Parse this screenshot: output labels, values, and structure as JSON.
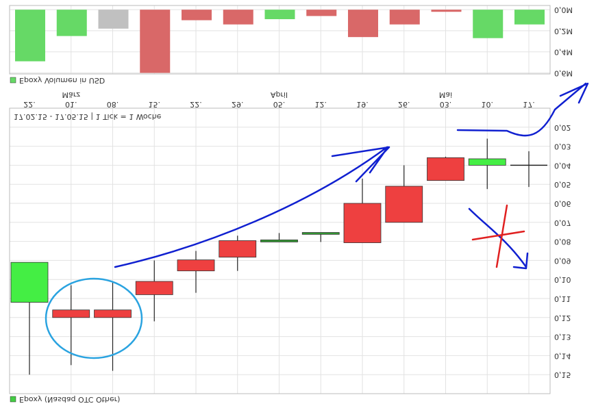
{
  "chart_data": [
    {
      "type": "candlestick",
      "flip_vertical": true,
      "legend": "Epoxy (Nasdaq OTC Other)",
      "period": "17.02.15 - 17.05.15 | 1 Tick = 1 Woche",
      "categories": [
        "22.",
        "01.",
        "08.",
        "15.",
        "22.",
        "29.",
        "05.",
        "12.",
        "19.",
        "26.",
        "03.",
        "10.",
        "17."
      ],
      "months": [
        null,
        "März",
        null,
        null,
        null,
        null,
        "April",
        null,
        null,
        null,
        "Mai",
        null,
        null
      ],
      "open": [
        0.091,
        0.12,
        0.12,
        0.108,
        0.0955,
        0.0883,
        0.0792,
        0.0753,
        0.0807,
        0.07,
        0.048,
        0.0366,
        0.04
      ],
      "high": [
        0.15,
        0.145,
        0.148,
        0.122,
        0.107,
        0.0955,
        0.0803,
        0.0803,
        0.0807,
        0.07,
        0.048,
        0.0525,
        0.0514
      ],
      "low": [
        0.091,
        0.103,
        0.101,
        0.09,
        0.085,
        0.077,
        0.0756,
        0.0753,
        0.047,
        0.04,
        0.0355,
        0.026,
        0.0326
      ],
      "close": [
        0.112,
        0.116,
        0.116,
        0.101,
        0.0897,
        0.0796,
        0.0803,
        0.0763,
        0.06,
        0.051,
        0.036,
        0.04,
        0.04
      ],
      "colors": [
        "#44ee44",
        "#ee4040",
        "#ee4040",
        "#ee4040",
        "#ee4040",
        "#ee4040",
        "#339933",
        "#339933",
        "#ee4040",
        "#ee4040",
        "#ee4040",
        "#44ee44",
        "#222222"
      ],
      "ylim": [
        0.01,
        0.16
      ],
      "yticks": [
        {
          "value": 0.02,
          "label": "0,02"
        },
        {
          "value": 0.03,
          "label": "0,03"
        },
        {
          "value": 0.04,
          "label": "0,04"
        },
        {
          "value": 0.05,
          "label": "0,05"
        },
        {
          "value": 0.06,
          "label": "0,06"
        },
        {
          "value": 0.07,
          "label": "0,07"
        },
        {
          "value": 0.08,
          "label": "0,08"
        },
        {
          "value": 0.09,
          "label": "0,09"
        },
        {
          "value": 0.1,
          "label": "0,10"
        },
        {
          "value": 0.11,
          "label": "0,11"
        },
        {
          "value": 0.12,
          "label": "0,12"
        },
        {
          "value": 0.13,
          "label": "0,13"
        },
        {
          "value": 0.14,
          "label": "0,14"
        },
        {
          "value": 0.15,
          "label": "0,15"
        }
      ],
      "grid": true
    },
    {
      "type": "bar",
      "legend": "Epoxy Volumen in USD",
      "values": [
        0.49,
        0.25,
        0.18,
        0.6,
        0.1,
        0.14,
        0.09,
        0.06,
        0.26,
        0.14,
        0.02,
        0.27,
        0.14
      ],
      "colors": [
        "#66d966",
        "#66d966",
        "#c0c0c0",
        "#d96868",
        "#d96868",
        "#d96868",
        "#66d966",
        "#d96868",
        "#d96868",
        "#d96868",
        "#d96868",
        "#66d966",
        "#66d966"
      ],
      "ylim": [
        -0.04,
        0.61
      ],
      "yticks": [
        {
          "value": 0,
          "label": "0,0M"
        },
        {
          "value": 0.2,
          "label": "0,2M"
        },
        {
          "value": 0.4,
          "label": "0,4M"
        },
        {
          "value": 0.6,
          "label": "0,6M"
        }
      ],
      "grid": true
    }
  ]
}
